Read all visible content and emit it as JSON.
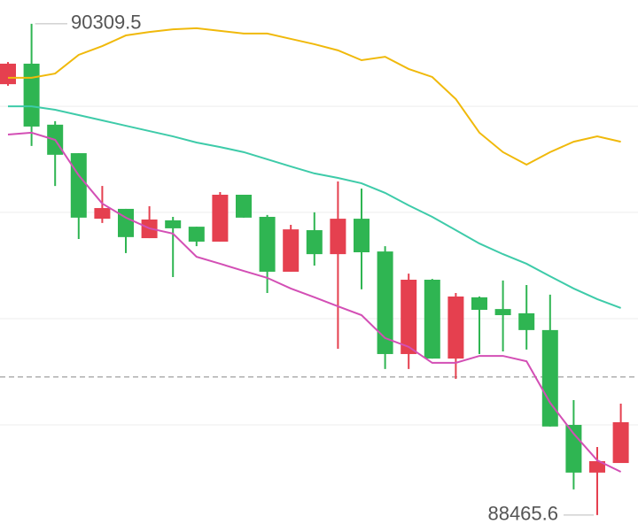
{
  "chart_data": {
    "type": "candlestick",
    "ylim": [
      88402,
      90399
    ],
    "grid_lines": [
      90000,
      89602,
      89203,
      88804
    ],
    "up_color": "#e5404f",
    "down_color": "#2fb552",
    "open": [
      90083,
      90160,
      89931,
      89824,
      89578,
      89615,
      89505,
      89572,
      89548,
      89492,
      89668,
      89585,
      89379,
      89535,
      89445,
      89578,
      89455,
      89070,
      89349,
      89053,
      89283,
      89239,
      89223,
      89160,
      88804,
      88625,
      88661
    ],
    "high": [
      90166,
      90309.5,
      89944,
      89824,
      89701,
      89615,
      89625,
      89585,
      89548,
      89678,
      89668,
      89592,
      89555,
      89602,
      89718,
      89691,
      89475,
      89372,
      89352,
      89299,
      89286,
      89346,
      89329,
      89293,
      88897,
      88721,
      88884
    ],
    "low": [
      90077,
      89851,
      89701,
      89502,
      89562,
      89449,
      89505,
      89359,
      89475,
      89492,
      89582,
      89299,
      89379,
      89402,
      89090,
      89313,
      89014,
      89014,
      89053,
      88977,
      89070,
      89080,
      89087,
      88798,
      88562,
      88465.6,
      88661
    ],
    "close": [
      90160,
      89924,
      89818,
      89582,
      89618,
      89509,
      89575,
      89542,
      89492,
      89668,
      89582,
      89379,
      89538,
      89445,
      89578,
      89452,
      89070,
      89349,
      89053,
      89286,
      89236,
      89216,
      89160,
      88798,
      88625,
      88668,
      88814
    ],
    "overlays": [
      {
        "color": "#f0b90b",
        "values": [
          90107,
          90107,
          90123,
          90193,
          90226,
          90266,
          90279,
          90289,
          90293,
          90283,
          90273,
          90273,
          90253,
          90233,
          90210,
          90173,
          90186,
          90140,
          90110,
          90027,
          89901,
          89828,
          89781,
          89828,
          89867,
          89887,
          89867
        ]
      },
      {
        "color": "#3ecba9",
        "values": [
          90000,
          90000,
          89987,
          89967,
          89947,
          89927,
          89907,
          89887,
          89864,
          89847,
          89828,
          89801,
          89774,
          89748,
          89731,
          89711,
          89675,
          89628,
          89585,
          89535,
          89485,
          89445,
          89409,
          89362,
          89316,
          89276,
          89243
        ]
      },
      {
        "color": "#d34fb5",
        "values": [
          89894,
          89901,
          89874,
          89741,
          89635,
          89582,
          89542,
          89522,
          89435,
          89409,
          89382,
          89356,
          89316,
          89283,
          89249,
          89216,
          89130,
          89097,
          89037,
          89037,
          89063,
          89063,
          89043,
          88887,
          88771,
          88671,
          88628
        ]
      }
    ],
    "last_price": 88984,
    "high_label": 90309.5,
    "low_label": 88465.6
  }
}
